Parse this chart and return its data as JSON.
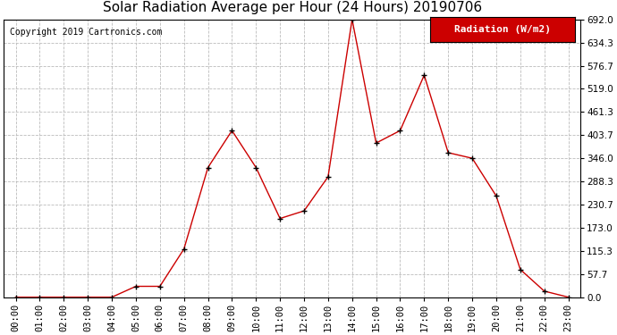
{
  "title": "Solar Radiation Average per Hour (24 Hours) 20190706",
  "copyright": "Copyright 2019 Cartronics.com",
  "legend_label": "Radiation (W/m2)",
  "hours": [
    0,
    1,
    2,
    3,
    4,
    5,
    6,
    7,
    8,
    9,
    10,
    11,
    12,
    13,
    14,
    15,
    16,
    17,
    18,
    19,
    20,
    21,
    22,
    23
  ],
  "values": [
    0.0,
    0.0,
    0.0,
    0.0,
    0.0,
    27.0,
    27.0,
    120.0,
    323.0,
    415.0,
    323.0,
    196.0,
    215.0,
    300.0,
    692.0,
    384.0,
    415.0,
    553.0,
    360.0,
    346.0,
    252.0,
    69.0,
    15.0,
    0.0
  ],
  "line_color": "#cc0000",
  "marker_color": "#000000",
  "bg_color": "#ffffff",
  "grid_color": "#bbbbbb",
  "legend_bg": "#cc0000",
  "legend_text_color": "#ffffff",
  "ylim_min": 0.0,
  "ylim_max": 692.0,
  "ytick_values": [
    0.0,
    57.7,
    115.3,
    173.0,
    230.7,
    288.3,
    346.0,
    403.7,
    461.3,
    519.0,
    576.7,
    634.3,
    692.0
  ],
  "title_fontsize": 11,
  "copyright_fontsize": 7,
  "legend_fontsize": 8,
  "tick_fontsize": 7.5
}
